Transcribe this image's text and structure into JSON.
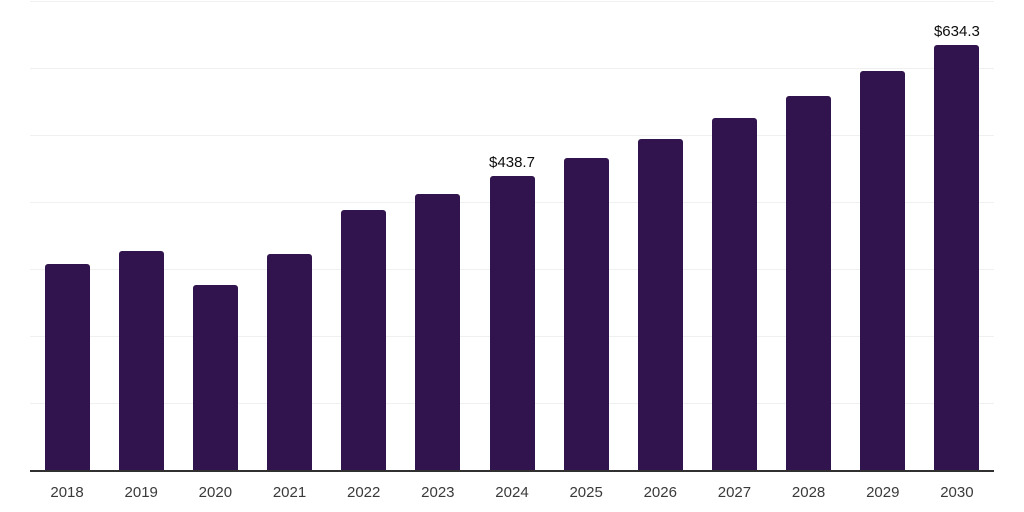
{
  "chart_data": {
    "type": "bar",
    "categories": [
      "2018",
      "2019",
      "2020",
      "2021",
      "2022",
      "2023",
      "2024",
      "2025",
      "2026",
      "2027",
      "2028",
      "2029",
      "2030"
    ],
    "values": [
      307.9,
      326.4,
      276.4,
      322.1,
      387.8,
      412.4,
      438.7,
      465.9,
      494.2,
      525.4,
      558.7,
      595.1,
      634.3
    ],
    "point_labels": {
      "2024": "$438.7",
      "2030": "$634.3"
    },
    "ylim": [
      0,
      700
    ],
    "gridline_step": 100,
    "grid": true,
    "legend_position": "none",
    "title": "",
    "xlabel": "",
    "ylabel": "",
    "colors": {
      "bar": "#31134d",
      "axis_line": "#303030",
      "gridline": "#f0f0f0",
      "tick_label": "#3a3a3a",
      "value_label": "#0d0d0d",
      "background": "#ffffff"
    }
  }
}
